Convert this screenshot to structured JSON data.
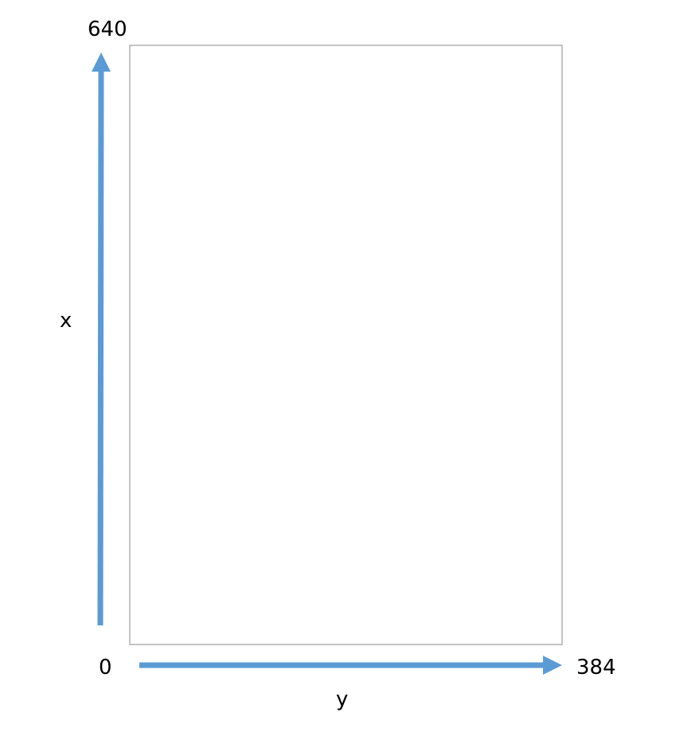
{
  "diagram": {
    "labels": {
      "x_max": "640",
      "x_axis": "x",
      "origin": "0",
      "y_max": "384",
      "y_axis": "y"
    },
    "colors": {
      "arrow": "#5b9bd5",
      "frame": "#b0b0b0"
    }
  }
}
